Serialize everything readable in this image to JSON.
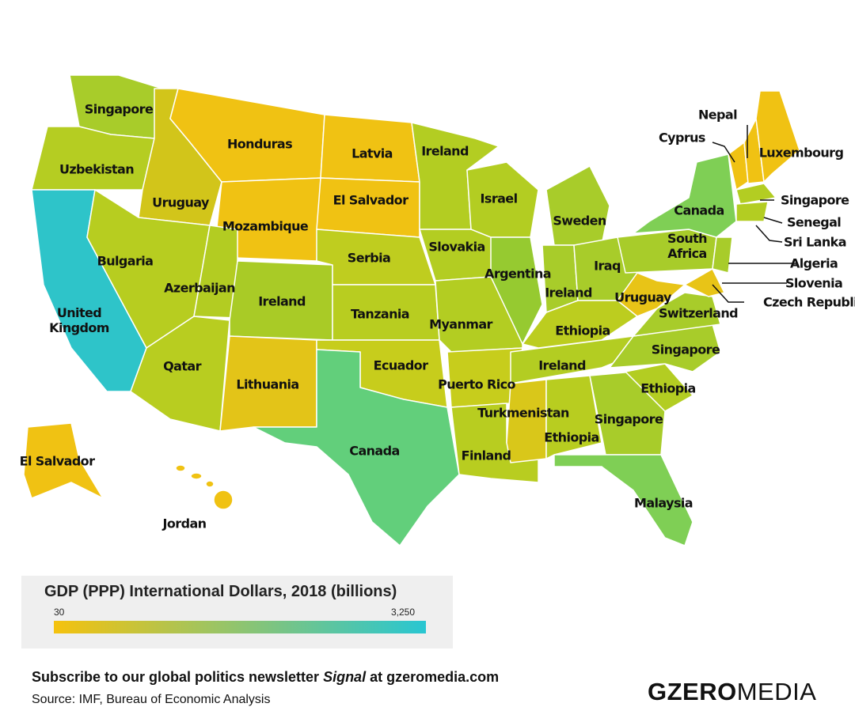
{
  "map": {
    "labels": [
      "Singapore",
      "Uzbekistan",
      "United Kingdom",
      "Uruguay",
      "Honduras",
      "Bulgaria",
      "Mozambique",
      "Latvia",
      "El Salvador",
      "Azerbaijan",
      "Ireland",
      "Serbia",
      "Tanzania",
      "Qatar",
      "Lithuania",
      "Canada",
      "Ecuador",
      "Ireland",
      "Slovakia",
      "Myanmar",
      "Puerto Rico",
      "Finland",
      "Israel",
      "Argentina",
      "Sweden",
      "Ireland",
      "Iraq",
      "Ethiopia",
      "Ireland",
      "Turkmenistan",
      "Ethiopia",
      "Singapore",
      "Malaysia",
      "Ethiopia",
      "Singapore",
      "Switzerland",
      "Uruguay",
      "South Africa",
      "Canada",
      "Luxembourg",
      "Nepal",
      "Cyprus",
      "Singapore",
      "Senegal",
      "Sri Lanka",
      "Algeria",
      "Slovenia",
      "Czech Republic",
      "El Salvador",
      "Jordan"
    ]
  },
  "legend": {
    "title": "GDP (PPP) International Dollars, 2018 (billions)",
    "min": 30,
    "max": {
      "value": 3250,
      "label": "3,250"
    },
    "colors": [
      "#f5c20e",
      "#28c6d2"
    ]
  },
  "footer": {
    "subscribe": [
      "Subscribe to our global politics newsletter ",
      "Signal",
      " at gzeromedia.com"
    ],
    "source": "Source: IMF, Bureau of Economic Analysis"
  },
  "logo": [
    "GZERO",
    "MEDIA"
  ]
}
